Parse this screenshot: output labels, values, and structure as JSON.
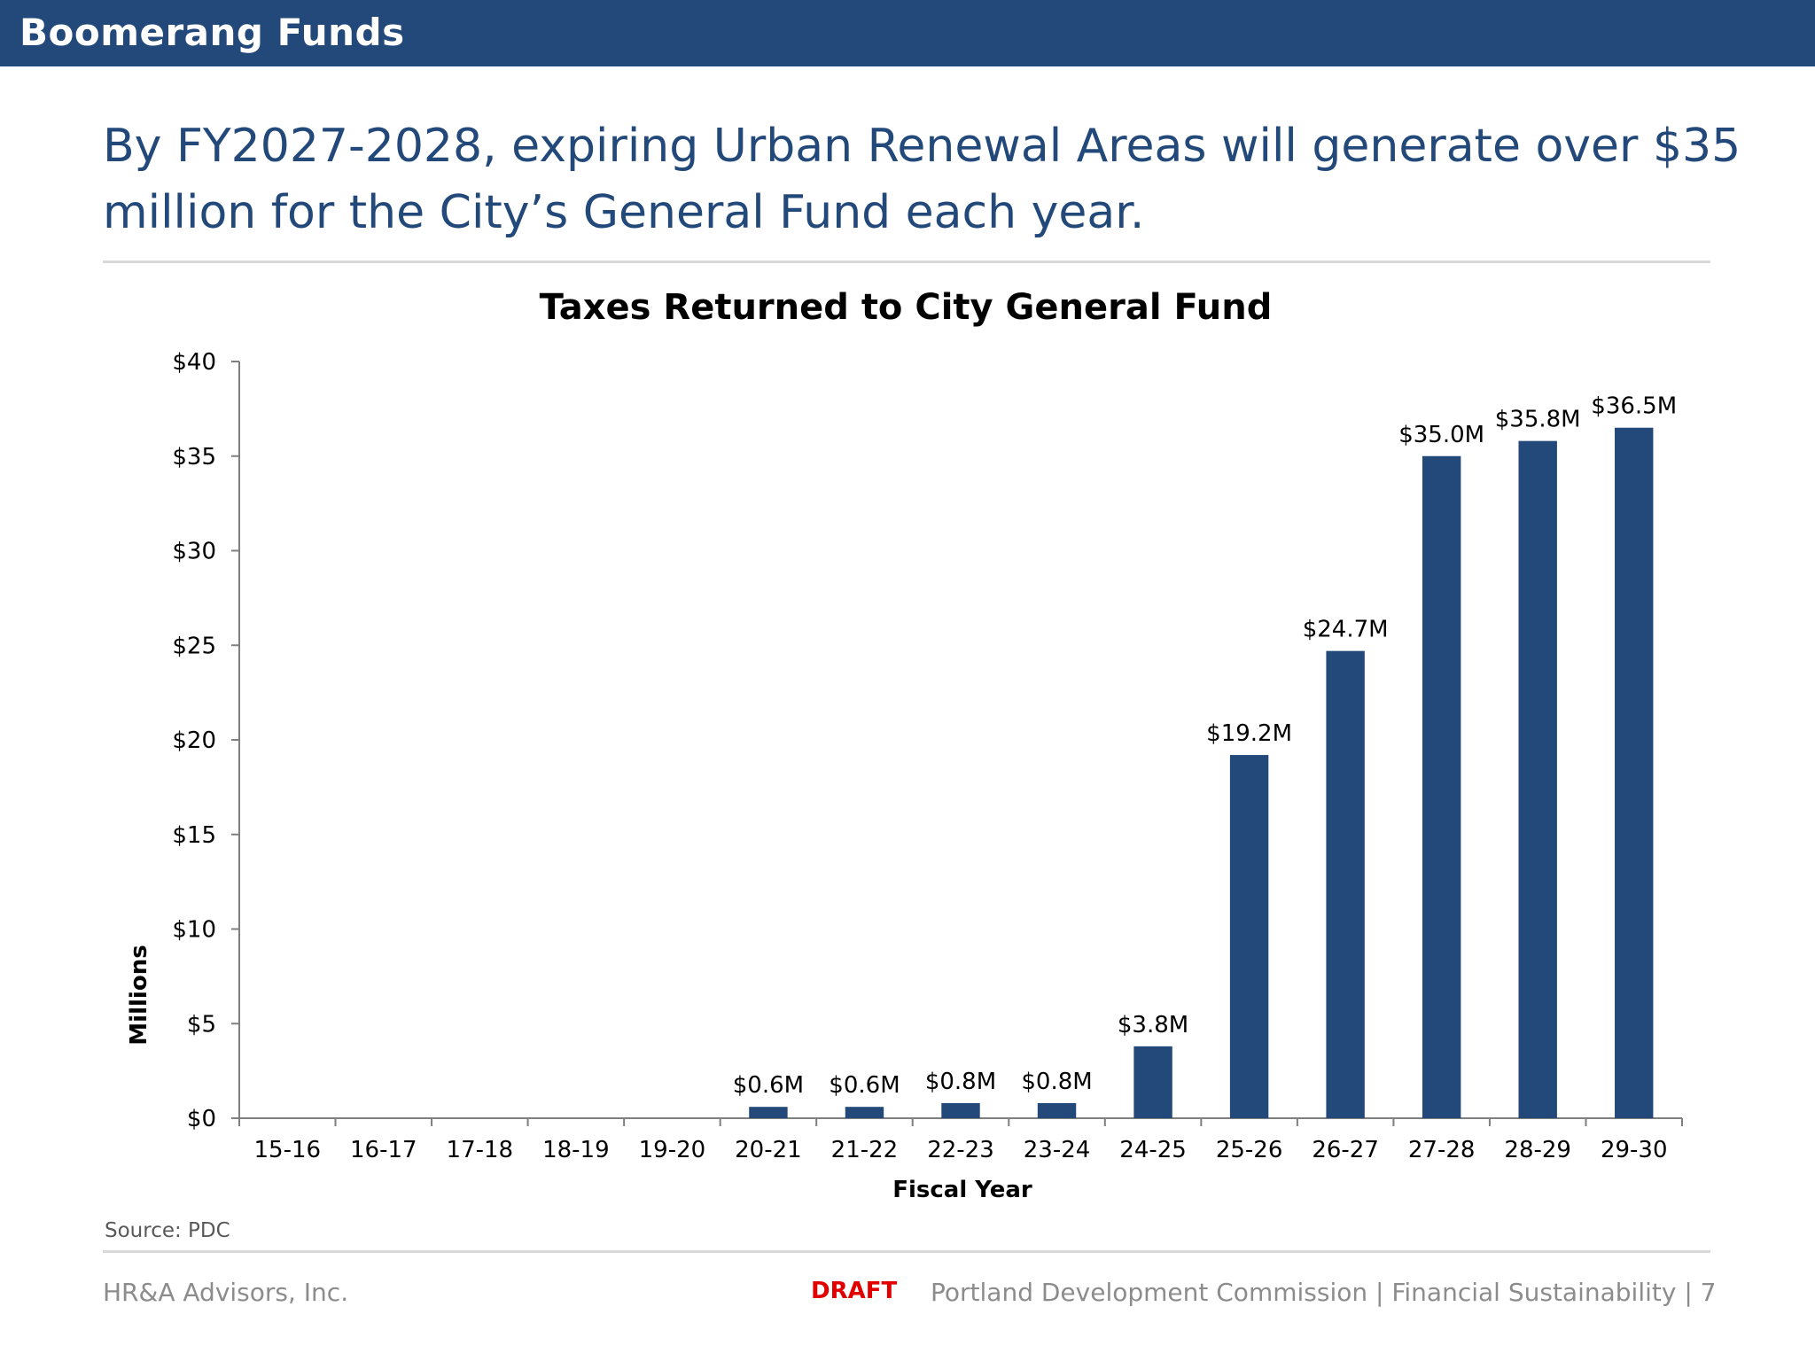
{
  "header": {
    "title": "Boomerang Funds"
  },
  "headline": "By FY2027-2028, expiring Urban Renewal Areas will generate over $35 million for the City’s General Fund each year.",
  "source": "Source: PDC",
  "footer": {
    "left": "HR&A Advisors, Inc.",
    "draft": "DRAFT",
    "right": "Portland Development Commission | Financial Sustainability | 7"
  },
  "colors": {
    "brand": "#22497a",
    "draft": "#e00000",
    "bar": "#22497a"
  },
  "chart_data": {
    "type": "bar",
    "title": "Taxes Returned to City General Fund",
    "xlabel": "Fiscal Year",
    "ylabel": "Millions",
    "categories": [
      "15-16",
      "16-17",
      "17-18",
      "18-19",
      "19-20",
      "20-21",
      "21-22",
      "22-23",
      "23-24",
      "24-25",
      "25-26",
      "26-27",
      "27-28",
      "28-29",
      "29-30"
    ],
    "values": [
      0,
      0,
      0,
      0,
      0,
      0.6,
      0.6,
      0.8,
      0.8,
      3.8,
      19.2,
      24.7,
      35.0,
      35.8,
      36.5
    ],
    "data_labels": [
      "",
      "",
      "",
      "",
      "",
      "$0.6M",
      "$0.6M",
      "$0.8M",
      "$0.8M",
      "$3.8M",
      "$19.2M",
      "$24.7M",
      "$35.0M",
      "$35.8M",
      "$36.5M"
    ],
    "yticks": [
      0,
      5,
      10,
      15,
      20,
      25,
      30,
      35,
      40
    ],
    "ytick_labels": [
      "$0",
      "$5",
      "$10",
      "$15",
      "$20",
      "$25",
      "$30",
      "$35",
      "$40"
    ],
    "ylim": [
      0,
      40
    ],
    "grid": false,
    "legend": "none"
  }
}
